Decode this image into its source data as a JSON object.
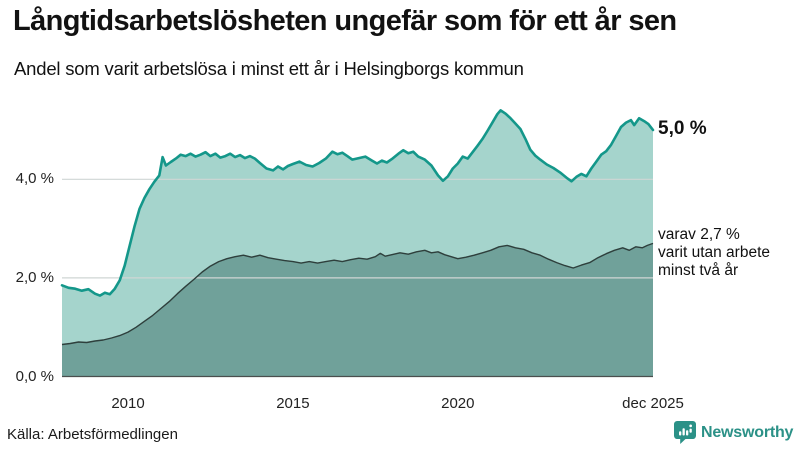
{
  "header": {
    "title": "Långtidsarbetslösheten ungefär som för ett år sen",
    "subtitle": "Andel som varit arbetslösa i minst ett år i Helsingborgs kommun"
  },
  "chart_data": {
    "type": "area",
    "title": "Långtidsarbetslösheten ungefär som för ett år sen",
    "subtitle": "Andel som varit arbetslösa i minst ett år i Helsingborgs kommun",
    "unit": "%",
    "xlim": [
      2008,
      2025.92
    ],
    "ylim": [
      0,
      6
    ],
    "grid": true,
    "gridlines": [
      2,
      4
    ],
    "legend_position": "end-of-line-annotations",
    "y_ticks": [
      {
        "value": 0,
        "label": "0,0 %"
      },
      {
        "value": 2,
        "label": "2,0 %"
      },
      {
        "value": 4,
        "label": "4,0 %"
      }
    ],
    "x_ticks": [
      {
        "value": 2010,
        "label": "2010"
      },
      {
        "value": 2015,
        "label": "2015"
      },
      {
        "value": 2020,
        "label": "2020"
      },
      {
        "value": 2025.92,
        "label": "dec 2025"
      }
    ],
    "series": [
      {
        "name": "Arbetslösa minst ett år",
        "latest_label": "5,0 %",
        "latest_value": 5.0,
        "line_color": "#14978a",
        "fill_color": "#a5d4cc",
        "points": [
          [
            2008.0,
            1.85
          ],
          [
            2008.2,
            1.8
          ],
          [
            2008.4,
            1.78
          ],
          [
            2008.6,
            1.74
          ],
          [
            2008.8,
            1.77
          ],
          [
            2009.0,
            1.68
          ],
          [
            2009.15,
            1.64
          ],
          [
            2009.3,
            1.7
          ],
          [
            2009.45,
            1.67
          ],
          [
            2009.6,
            1.78
          ],
          [
            2009.75,
            1.95
          ],
          [
            2009.9,
            2.25
          ],
          [
            2010.05,
            2.65
          ],
          [
            2010.2,
            3.05
          ],
          [
            2010.35,
            3.4
          ],
          [
            2010.5,
            3.62
          ],
          [
            2010.65,
            3.8
          ],
          [
            2010.8,
            3.95
          ],
          [
            2010.95,
            4.08
          ],
          [
            2011.05,
            4.45
          ],
          [
            2011.15,
            4.28
          ],
          [
            2011.3,
            4.35
          ],
          [
            2011.45,
            4.42
          ],
          [
            2011.6,
            4.5
          ],
          [
            2011.75,
            4.47
          ],
          [
            2011.9,
            4.52
          ],
          [
            2012.05,
            4.46
          ],
          [
            2012.2,
            4.5
          ],
          [
            2012.35,
            4.55
          ],
          [
            2012.5,
            4.47
          ],
          [
            2012.65,
            4.52
          ],
          [
            2012.8,
            4.44
          ],
          [
            2012.95,
            4.47
          ],
          [
            2013.1,
            4.52
          ],
          [
            2013.25,
            4.45
          ],
          [
            2013.4,
            4.49
          ],
          [
            2013.55,
            4.43
          ],
          [
            2013.7,
            4.47
          ],
          [
            2013.85,
            4.42
          ],
          [
            2014.0,
            4.33
          ],
          [
            2014.2,
            4.22
          ],
          [
            2014.4,
            4.18
          ],
          [
            2014.55,
            4.26
          ],
          [
            2014.7,
            4.2
          ],
          [
            2014.85,
            4.27
          ],
          [
            2015.0,
            4.31
          ],
          [
            2015.2,
            4.36
          ],
          [
            2015.4,
            4.29
          ],
          [
            2015.6,
            4.26
          ],
          [
            2015.8,
            4.33
          ],
          [
            2016.0,
            4.42
          ],
          [
            2016.2,
            4.56
          ],
          [
            2016.35,
            4.51
          ],
          [
            2016.5,
            4.54
          ],
          [
            2016.65,
            4.47
          ],
          [
            2016.8,
            4.4
          ],
          [
            2017.0,
            4.43
          ],
          [
            2017.2,
            4.46
          ],
          [
            2017.4,
            4.38
          ],
          [
            2017.55,
            4.32
          ],
          [
            2017.7,
            4.38
          ],
          [
            2017.85,
            4.34
          ],
          [
            2018.0,
            4.41
          ],
          [
            2018.2,
            4.52
          ],
          [
            2018.35,
            4.59
          ],
          [
            2018.5,
            4.53
          ],
          [
            2018.65,
            4.56
          ],
          [
            2018.8,
            4.46
          ],
          [
            2019.0,
            4.4
          ],
          [
            2019.2,
            4.28
          ],
          [
            2019.4,
            4.08
          ],
          [
            2019.55,
            3.97
          ],
          [
            2019.7,
            4.06
          ],
          [
            2019.85,
            4.22
          ],
          [
            2020.0,
            4.32
          ],
          [
            2020.15,
            4.46
          ],
          [
            2020.3,
            4.42
          ],
          [
            2020.45,
            4.55
          ],
          [
            2020.6,
            4.68
          ],
          [
            2020.75,
            4.82
          ],
          [
            2020.9,
            4.98
          ],
          [
            2021.05,
            5.15
          ],
          [
            2021.2,
            5.32
          ],
          [
            2021.3,
            5.4
          ],
          [
            2021.45,
            5.33
          ],
          [
            2021.6,
            5.24
          ],
          [
            2021.75,
            5.13
          ],
          [
            2021.9,
            5.02
          ],
          [
            2022.05,
            4.82
          ],
          [
            2022.2,
            4.6
          ],
          [
            2022.35,
            4.48
          ],
          [
            2022.5,
            4.4
          ],
          [
            2022.7,
            4.3
          ],
          [
            2022.9,
            4.23
          ],
          [
            2023.1,
            4.14
          ],
          [
            2023.3,
            4.03
          ],
          [
            2023.45,
            3.96
          ],
          [
            2023.6,
            4.05
          ],
          [
            2023.75,
            4.11
          ],
          [
            2023.9,
            4.06
          ],
          [
            2024.05,
            4.22
          ],
          [
            2024.2,
            4.36
          ],
          [
            2024.35,
            4.5
          ],
          [
            2024.5,
            4.57
          ],
          [
            2024.65,
            4.7
          ],
          [
            2024.8,
            4.88
          ],
          [
            2024.95,
            5.06
          ],
          [
            2025.1,
            5.15
          ],
          [
            2025.25,
            5.2
          ],
          [
            2025.35,
            5.1
          ],
          [
            2025.5,
            5.24
          ],
          [
            2025.65,
            5.18
          ],
          [
            2025.78,
            5.12
          ],
          [
            2025.92,
            5.0
          ]
        ]
      },
      {
        "name": "Arbetslösa minst två år",
        "latest_label": "2,7 %",
        "latest_value": 2.7,
        "line_color": "#2e3f3c",
        "fill_color": "#70a19a",
        "points": [
          [
            2008.0,
            0.65
          ],
          [
            2008.25,
            0.67
          ],
          [
            2008.5,
            0.7
          ],
          [
            2008.75,
            0.69
          ],
          [
            2009.0,
            0.72
          ],
          [
            2009.25,
            0.74
          ],
          [
            2009.5,
            0.78
          ],
          [
            2009.75,
            0.83
          ],
          [
            2010.0,
            0.9
          ],
          [
            2010.25,
            1.0
          ],
          [
            2010.5,
            1.12
          ],
          [
            2010.75,
            1.24
          ],
          [
            2011.0,
            1.38
          ],
          [
            2011.25,
            1.52
          ],
          [
            2011.5,
            1.68
          ],
          [
            2011.75,
            1.83
          ],
          [
            2012.0,
            1.97
          ],
          [
            2012.25,
            2.12
          ],
          [
            2012.5,
            2.24
          ],
          [
            2012.75,
            2.33
          ],
          [
            2013.0,
            2.39
          ],
          [
            2013.25,
            2.43
          ],
          [
            2013.5,
            2.46
          ],
          [
            2013.75,
            2.42
          ],
          [
            2014.0,
            2.46
          ],
          [
            2014.25,
            2.41
          ],
          [
            2014.5,
            2.38
          ],
          [
            2014.75,
            2.35
          ],
          [
            2015.0,
            2.33
          ],
          [
            2015.25,
            2.3
          ],
          [
            2015.5,
            2.33
          ],
          [
            2015.75,
            2.3
          ],
          [
            2016.0,
            2.33
          ],
          [
            2016.25,
            2.36
          ],
          [
            2016.5,
            2.33
          ],
          [
            2016.75,
            2.37
          ],
          [
            2017.0,
            2.4
          ],
          [
            2017.25,
            2.38
          ],
          [
            2017.5,
            2.43
          ],
          [
            2017.65,
            2.5
          ],
          [
            2017.8,
            2.44
          ],
          [
            2018.0,
            2.47
          ],
          [
            2018.25,
            2.51
          ],
          [
            2018.5,
            2.48
          ],
          [
            2018.75,
            2.53
          ],
          [
            2019.0,
            2.56
          ],
          [
            2019.2,
            2.51
          ],
          [
            2019.4,
            2.53
          ],
          [
            2019.6,
            2.47
          ],
          [
            2019.8,
            2.43
          ],
          [
            2020.0,
            2.39
          ],
          [
            2020.25,
            2.42
          ],
          [
            2020.5,
            2.46
          ],
          [
            2020.75,
            2.51
          ],
          [
            2021.0,
            2.56
          ],
          [
            2021.25,
            2.63
          ],
          [
            2021.5,
            2.66
          ],
          [
            2021.75,
            2.61
          ],
          [
            2022.0,
            2.58
          ],
          [
            2022.25,
            2.51
          ],
          [
            2022.5,
            2.46
          ],
          [
            2022.75,
            2.38
          ],
          [
            2023.0,
            2.31
          ],
          [
            2023.25,
            2.25
          ],
          [
            2023.5,
            2.2
          ],
          [
            2023.75,
            2.26
          ],
          [
            2024.0,
            2.31
          ],
          [
            2024.25,
            2.41
          ],
          [
            2024.5,
            2.49
          ],
          [
            2024.75,
            2.56
          ],
          [
            2025.0,
            2.61
          ],
          [
            2025.2,
            2.56
          ],
          [
            2025.4,
            2.63
          ],
          [
            2025.6,
            2.61
          ],
          [
            2025.75,
            2.66
          ],
          [
            2025.92,
            2.7
          ]
        ]
      }
    ]
  },
  "annotations": {
    "latest_value": "5,0 %",
    "two_year_note": "varav 2,7 %\nvarit utan arbete\nminst två år"
  },
  "footer": {
    "source": "Källa: Arbetsförmedlingen",
    "logo_text": "Newsworthy"
  },
  "colors": {
    "accent_teal": "#14978a",
    "light_fill": "#a5d4cc",
    "dark_fill": "#70a19a",
    "dark_line": "#2e3f3c",
    "logo_teal": "#2b9187",
    "gridline": "#cfd6d4",
    "text": "#121212"
  }
}
